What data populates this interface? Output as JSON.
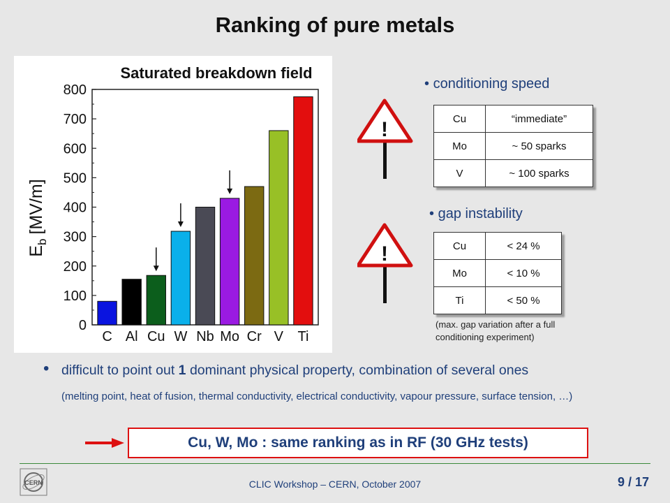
{
  "slide": {
    "title": "Ranking of pure metals",
    "footer": "CLIC Workshop – CERN, October 2007",
    "page": "9 / 17",
    "logo_text": "CERN"
  },
  "chart_data": {
    "type": "bar",
    "title": "Saturated breakdown field",
    "ylabel_main": "E",
    "ylabel_sub": "b",
    "ylabel_unit": "[MV/m]",
    "ylim": [
      0,
      800
    ],
    "yticks": [
      "0",
      "100",
      "200",
      "300",
      "400",
      "500",
      "600",
      "700",
      "800"
    ],
    "categories": [
      "C",
      "Al",
      "Cu",
      "W",
      "Nb",
      "Mo",
      "Cr",
      "V",
      "Ti"
    ],
    "values": [
      80,
      155,
      168,
      318,
      400,
      430,
      470,
      660,
      775
    ],
    "colors": [
      "#0a14e0",
      "#000000",
      "#0c5e1c",
      "#0ab0ea",
      "#4a4a55",
      "#9a1ae2",
      "#7c6a12",
      "#98c026",
      "#e30e0e"
    ],
    "arrows_on": [
      "Cu",
      "W",
      "Mo"
    ],
    "grid": false
  },
  "sections": {
    "speed": {
      "heading": "conditioning speed",
      "rows": [
        {
          "metal": "Cu",
          "value": "“immediate”"
        },
        {
          "metal": "Mo",
          "value": "~ 50 sparks"
        },
        {
          "metal": "V",
          "value": "~ 100 sparks"
        }
      ]
    },
    "gap": {
      "heading": "gap instability",
      "rows": [
        {
          "metal": "Cu",
          "value": "< 24 %"
        },
        {
          "metal": "Mo",
          "value": "< 10 %"
        },
        {
          "metal": "Ti",
          "value": "< 50 %"
        }
      ],
      "note_line1": "(max. gap variation after a full",
      "note_line2": "conditioning experiment)"
    },
    "warning_symbol": "!"
  },
  "body": {
    "bullet": "•",
    "line1_pre": "difficult to point out ",
    "line1_bold": "1",
    "line1_post": " dominant physical property, combination of several ones",
    "line2": "(melting point, heat of fusion, thermal conductivity, electrical conductivity, vapour pressure, surface tension, …)",
    "conclusion": "Cu, W, Mo : same ranking as in RF (30 GHz tests)"
  }
}
